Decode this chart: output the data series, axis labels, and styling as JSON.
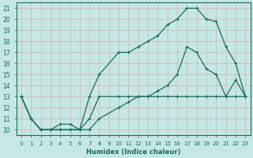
{
  "xlabel": "Humidex (Indice chaleur)",
  "bg_color": "#c5e8e5",
  "grid_color": "#d4b8b8",
  "line_color": "#1a6b5a",
  "xlim": [
    -0.5,
    23.5
  ],
  "ylim": [
    9.5,
    21.5
  ],
  "xticks": [
    0,
    1,
    2,
    3,
    4,
    5,
    6,
    7,
    8,
    9,
    10,
    11,
    12,
    13,
    14,
    15,
    16,
    17,
    18,
    19,
    20,
    21,
    22,
    23
  ],
  "yticks": [
    10,
    11,
    12,
    13,
    14,
    15,
    16,
    17,
    18,
    19,
    20,
    21
  ],
  "line1_x": [
    0,
    1,
    2,
    3,
    4,
    5,
    6,
    7,
    8,
    10,
    11,
    12,
    13,
    14,
    15,
    16,
    17,
    18,
    19,
    20,
    21,
    22,
    23
  ],
  "line1_y": [
    13,
    11,
    10,
    10,
    10,
    10,
    10,
    11,
    13,
    13,
    13,
    13,
    13,
    13,
    13,
    13,
    13,
    13,
    13,
    13,
    13,
    13,
    13
  ],
  "line2_x": [
    0,
    1,
    2,
    3,
    4,
    5,
    6,
    7,
    8,
    10,
    11,
    12,
    13,
    14,
    15,
    16,
    17,
    18,
    19,
    20,
    21,
    22,
    23
  ],
  "line2_y": [
    13,
    11,
    10,
    10,
    10,
    10,
    10,
    13,
    15,
    17,
    17,
    17.5,
    18,
    18.5,
    19.5,
    20,
    21,
    21,
    20,
    19.8,
    17.5,
    16,
    13
  ],
  "line3_x": [
    0,
    1,
    2,
    3,
    4,
    5,
    6,
    7,
    8,
    10,
    11,
    12,
    13,
    14,
    15,
    16,
    17,
    18,
    19,
    20,
    21,
    22,
    23
  ],
  "line3_y": [
    13,
    11,
    10,
    10,
    10.5,
    10.5,
    10,
    10,
    11,
    12,
    12.5,
    13,
    13,
    13.5,
    14,
    15,
    17.5,
    17,
    15.5,
    15,
    13,
    14.5,
    13
  ],
  "marker_size": 2.5,
  "linewidth": 0.9
}
